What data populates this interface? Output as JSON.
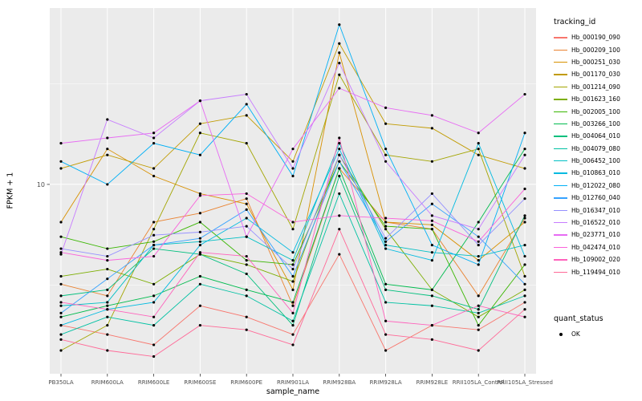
{
  "chart_data": {
    "type": "line",
    "title": "",
    "xlabel": "sample_name",
    "ylabel": "FPKM + 1",
    "y_scale": "log10",
    "ylim": [
      1.15,
      75
    ],
    "y_ticks": [
      10
    ],
    "y_minor_gridlines": [
      3.1623,
      31.623
    ],
    "grid": true,
    "panel_bg": "#EBEBEB",
    "grid_color": "#FFFFFF",
    "tick_label_color": "#4D4D4D",
    "point_color": "#000000",
    "legend_position": "right",
    "legend_title": "tracking_id",
    "point_legend": {
      "title": "quant_status",
      "items": [
        {
          "label": "OK"
        }
      ]
    },
    "x_categories": [
      "PB350LA",
      "RRIM600LA",
      "RRIM600LE",
      "RRIM600SE",
      "RRIM600PE",
      "RRIM901LA",
      "RRIM928BA",
      "RRIM928LA",
      "RRIM928LE",
      "RRII105LA_Control",
      "RRII105LA_Stressed"
    ],
    "series": [
      {
        "name": "Hb_000190_090",
        "color": "#F8766D",
        "values": [
          2.0,
          1.8,
          1.6,
          2.5,
          2.2,
          1.8,
          4.5,
          1.5,
          2.0,
          1.9,
          2.6
        ]
      },
      {
        "name": "Hb_000209_100",
        "color": "#EA8331",
        "values": [
          3.2,
          2.8,
          6.5,
          7.2,
          8.5,
          2.5,
          12,
          6.5,
          6.0,
          2.8,
          6.8
        ]
      },
      {
        "name": "Hb_000251_030",
        "color": "#D89000",
        "values": [
          6.5,
          15,
          11,
          9.0,
          8.0,
          3.0,
          45,
          6.5,
          6.3,
          4.2,
          6.5
        ]
      },
      {
        "name": "Hb_001170_030",
        "color": "#C19B00",
        "values": [
          12,
          14,
          12,
          20,
          22,
          13,
          50,
          20,
          19,
          14,
          12
        ]
      },
      {
        "name": "Hb_001214_090",
        "color": "#A3A500",
        "values": [
          1.5,
          2.0,
          6.0,
          18,
          16,
          6.0,
          35,
          14,
          13,
          15,
          3.5
        ]
      },
      {
        "name": "Hb_001623_160",
        "color": "#7CAE00",
        "values": [
          3.5,
          3.8,
          3.2,
          4.5,
          4.0,
          3.3,
          14,
          6.0,
          3.0,
          2.2,
          3.0
        ]
      },
      {
        "name": "Hb_002005_100",
        "color": "#39B600",
        "values": [
          5.5,
          4.8,
          5.2,
          6.5,
          4.2,
          4.0,
          13,
          6.2,
          6.0,
          2.0,
          4.0
        ]
      },
      {
        "name": "Hb_003266_100",
        "color": "#00BB4E",
        "values": [
          2.2,
          2.5,
          2.8,
          3.5,
          3.0,
          2.6,
          12,
          3.2,
          3.0,
          6.5,
          15
        ]
      },
      {
        "name": "Hb_004064_010",
        "color": "#00BF7D",
        "values": [
          2.8,
          3.0,
          4.8,
          4.5,
          3.6,
          2.0,
          11,
          3.0,
          2.8,
          2.4,
          7.0
        ]
      },
      {
        "name": "Hb_004079_080",
        "color": "#00C1A3",
        "values": [
          1.8,
          2.2,
          2.0,
          3.2,
          2.8,
          2.1,
          9.0,
          2.6,
          2.5,
          2.3,
          2.8
        ]
      },
      {
        "name": "Hb_006452_100",
        "color": "#00BFC4",
        "values": [
          2.5,
          2.6,
          5.0,
          5.2,
          5.5,
          4.2,
          16,
          5.0,
          4.6,
          4.4,
          5.0
        ]
      },
      {
        "name": "Hb_010863_010",
        "color": "#00BAE0",
        "values": [
          2.0,
          2.4,
          2.6,
          5.0,
          6.8,
          4.6,
          15,
          4.8,
          4.2,
          16,
          4.4
        ]
      },
      {
        "name": "Hb_012022_080",
        "color": "#00B0F6",
        "values": [
          13,
          10,
          16,
          14,
          25,
          11,
          62,
          15,
          5.0,
          4.0,
          18
        ]
      },
      {
        "name": "Hb_012760_040",
        "color": "#35A2FF",
        "values": [
          2.3,
          3.4,
          5.0,
          5.4,
          7.5,
          3.5,
          13,
          5.2,
          8.0,
          5.5,
          3.2
        ]
      },
      {
        "name": "Hb_016347_010",
        "color": "#9590FF",
        "values": [
          4.8,
          4.4,
          5.6,
          5.8,
          6.2,
          3.8,
          14,
          5.4,
          9.0,
          5.0,
          8.5
        ]
      },
      {
        "name": "Hb_016522_010",
        "color": "#C77CFF",
        "values": [
          4.5,
          21,
          17,
          26,
          28,
          12,
          40,
          13,
          7.0,
          6.0,
          14
        ]
      },
      {
        "name": "Hb_023771_010",
        "color": "#E76BF3",
        "values": [
          16,
          17,
          18,
          26,
          5.5,
          15,
          30,
          24,
          22,
          18,
          28
        ]
      },
      {
        "name": "Hb_042474_010",
        "color": "#FA62DB",
        "values": [
          4.6,
          4.2,
          4.4,
          8.8,
          9.0,
          6.5,
          7.0,
          6.8,
          6.6,
          5.2,
          9.5
        ]
      },
      {
        "name": "Hb_109002_020",
        "color": "#FF62BC",
        "values": [
          2.6,
          2.4,
          2.2,
          4.6,
          4.4,
          2.3,
          17,
          2.1,
          2.0,
          2.5,
          2.2
        ]
      },
      {
        "name": "Hb_119494_010",
        "color": "#FF6A98",
        "values": [
          1.7,
          1.5,
          1.4,
          2.0,
          1.9,
          1.6,
          6.0,
          1.8,
          1.7,
          1.5,
          2.4
        ]
      }
    ]
  }
}
